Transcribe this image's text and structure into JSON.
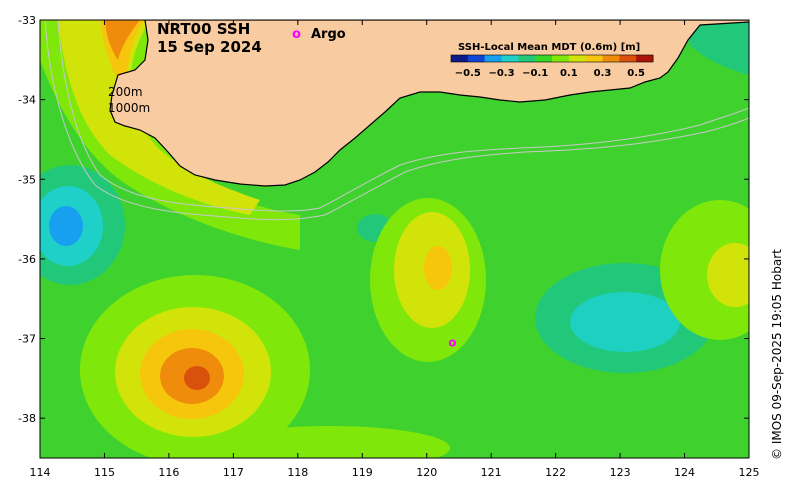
{
  "map": {
    "title_line1": "NRT00 SSH",
    "title_line2": "15 Sep 2024",
    "argo_label": "Argo",
    "argo_marker": "o",
    "isobath_200": "200m",
    "isobath_1000": "1000m",
    "copyright": "© IMOS 09-Sep-2025 19:05 Hobart",
    "lon_range": [
      114,
      125
    ],
    "lat_range": [
      -38.5,
      -33
    ],
    "lon_ticks": [
      "114",
      "115",
      "116",
      "117",
      "118",
      "119",
      "120",
      "121",
      "122",
      "123",
      "124",
      "125"
    ],
    "lat_ticks": [
      "-33",
      "-34",
      "-35",
      "-36",
      "-37",
      "-38"
    ]
  },
  "colorbar": {
    "title": "SSH-Local Mean MDT (0.6m) [m]",
    "tick_labels": [
      "−0.5",
      "−0.3",
      "−0.1",
      "0.1",
      "0.3",
      "0.5"
    ],
    "range": [
      -0.6,
      0.6
    ],
    "colors": [
      "#0c1a8a",
      "#1046d6",
      "#18a0f0",
      "#1ed0c8",
      "#22c87a",
      "#37d627",
      "#7fe80a",
      "#d2e30a",
      "#f5c60c",
      "#ef8c0c",
      "#d8520c",
      "#a8140a"
    ]
  },
  "colors": {
    "land": "#f9cba0",
    "coastline": "#000000",
    "isobath": "#c8c8c8",
    "argo": "#ff00ff",
    "background_field": "#3fd22e"
  },
  "argo_float": {
    "lon": 120.4,
    "lat": -37.05
  }
}
